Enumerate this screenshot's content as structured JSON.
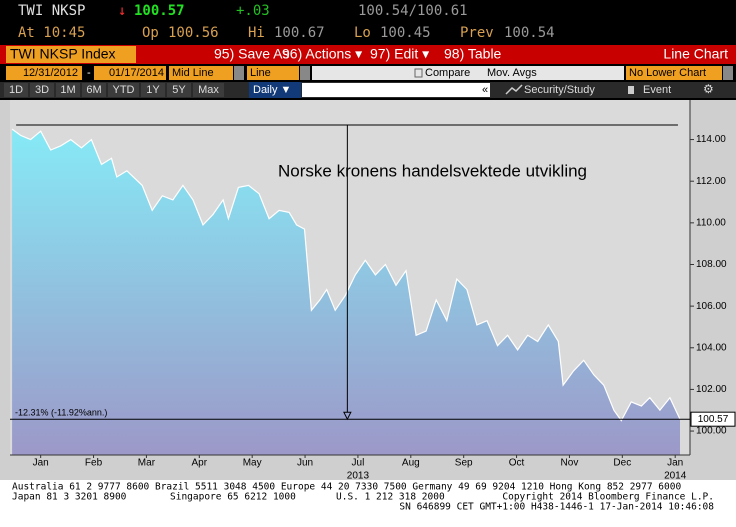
{
  "header": {
    "ticker": "TWI NKSP",
    "arrow": "↓",
    "last": "100.57",
    "change": "+.03",
    "bid_ask": "100.54/100.61",
    "time": "At 10:45",
    "open_label": "Op",
    "open": "100.56",
    "high_label": "Hi",
    "high": "100.67",
    "low_label": "Lo",
    "low": "100.45",
    "prev_label": "Prev",
    "prev": "100.54"
  },
  "toolbar": {
    "security": "TWI NKSP Index",
    "buttons": [
      "95) Save As",
      "96) Actions ▾",
      "97) Edit ▾",
      "98) Table"
    ],
    "chart_type": "Line Chart"
  },
  "controls": {
    "start": "12/31/2012",
    "dash": "-",
    "end": "01/17/2014",
    "mode": "Mid Line",
    "style": "Line",
    "compare": "Compare",
    "mov_avgs": "Mov. Avgs",
    "lower": "No Lower Chart"
  },
  "periods": {
    "buttons": [
      "1D",
      "3D",
      "1M",
      "6M",
      "YTD",
      "1Y",
      "5Y",
      "Max"
    ],
    "frequency": "Daily ▼",
    "collapse": "«",
    "study": "Security/Study",
    "event": "Event"
  },
  "chart_data": {
    "type": "area",
    "title": "Norske kronens handelsvektede utvikling",
    "x": [
      -0.04,
      0.12,
      0.31,
      0.5,
      0.69,
      0.88,
      1.07,
      1.27,
      1.46,
      1.65,
      1.84,
      1.94,
      2.13,
      2.42,
      2.61,
      2.8,
      3.0,
      3.19,
      3.38,
      3.57,
      3.76,
      3.95,
      4.05,
      4.24,
      4.43,
      4.63,
      4.82,
      5.01,
      5.2,
      5.34,
      5.49,
      5.62,
      5.78,
      5.91,
      6.07,
      6.26,
      6.45,
      6.64,
      6.83,
      7.02,
      7.22,
      7.41,
      7.6,
      7.79,
      7.98,
      8.18,
      8.37,
      8.56,
      8.75,
      8.94,
      9.14,
      9.33,
      9.52,
      9.71,
      9.9,
      10.1,
      10.29,
      10.38,
      10.58,
      10.77,
      10.96,
      11.15,
      11.34,
      11.48,
      11.67,
      11.86,
      12.02,
      12.21,
      12.4,
      12.59
    ],
    "series": [
      {
        "name": "TWI NKSP Index",
        "color": "#ffffff",
        "values": [
          114.5,
          114.2,
          114,
          114.4,
          113.5,
          113.7,
          114,
          113.6,
          114,
          112.8,
          113.1,
          112.2,
          112.5,
          111.8,
          110.6,
          111.3,
          111.1,
          111.8,
          111.1,
          109.9,
          110.4,
          111.1,
          110.2,
          111.7,
          111.8,
          111.4,
          110.2,
          110.6,
          110.5,
          109.9,
          109.7,
          105.8,
          106.3,
          106.8,
          105.8,
          106.5,
          107.5,
          108.2,
          107.5,
          108,
          107,
          107.7,
          104.6,
          104.8,
          106.3,
          105.3,
          107.3,
          106.8,
          105.1,
          105.3,
          104.1,
          104.6,
          103.9,
          104.6,
          104.3,
          105.1,
          104.3,
          102.2,
          102.9,
          103.4,
          102.7,
          102.2,
          101,
          100.5,
          101.4,
          101.2,
          101.6,
          101,
          101.6,
          100.57
        ]
      }
    ],
    "xlim": [
      -0.08,
      12.78
    ],
    "xticks": [
      {
        "value": 0.5,
        "label": "Jan"
      },
      {
        "value": 1.5,
        "label": "Feb"
      },
      {
        "value": 2.5,
        "label": "Mar"
      },
      {
        "value": 3.5,
        "label": "Apr"
      },
      {
        "value": 4.5,
        "label": "May"
      },
      {
        "value": 5.5,
        "label": "Jun"
      },
      {
        "value": 6.5,
        "label": "Jul"
      },
      {
        "value": 7.5,
        "label": "Aug"
      },
      {
        "value": 8.5,
        "label": "Sep"
      },
      {
        "value": 9.5,
        "label": "Oct"
      },
      {
        "value": 10.5,
        "label": "Nov"
      },
      {
        "value": 11.5,
        "label": "Dec"
      },
      {
        "value": 12.5,
        "label": "Jan"
      }
    ],
    "year_labels": [
      {
        "value": 6.5,
        "label": "2013"
      },
      {
        "value": 12.5,
        "label": "2014"
      }
    ],
    "ylim": [
      98.85,
      115.9
    ],
    "yticks": [
      {
        "value": 100,
        "label": "100.00"
      },
      {
        "value": 102,
        "label": "102.00"
      },
      {
        "value": 104,
        "label": "104.00"
      },
      {
        "value": 106,
        "label": "106.00"
      },
      {
        "value": 108,
        "label": "108.00"
      },
      {
        "value": 110,
        "label": "110.00"
      },
      {
        "value": 112,
        "label": "112.00"
      },
      {
        "value": 114,
        "label": "114.00"
      }
    ],
    "period_high": 114.7,
    "last_value": 100.57,
    "arrow_x": 6.3,
    "change_annotation": "-12.31% (-11.92%ann.)"
  },
  "footer": {
    "lines": [
      "Australia 61 2 9777 8600 Brazil 5511 3048 4500 Europe 44 20 7330 7500 Germany 49 69 9204 1210 Hong Kong 852 2977 6000",
      "Japan 81 3 3201 8900",
      "Singapore 65 6212 1000",
      "U.S. 1 212 318 2000",
      "Copyright 2014 Bloomberg Finance L.P.",
      "SN 646899 CET  GMT+1:00 H438-1446-1 17-Jan-2014 10:46:08"
    ]
  }
}
